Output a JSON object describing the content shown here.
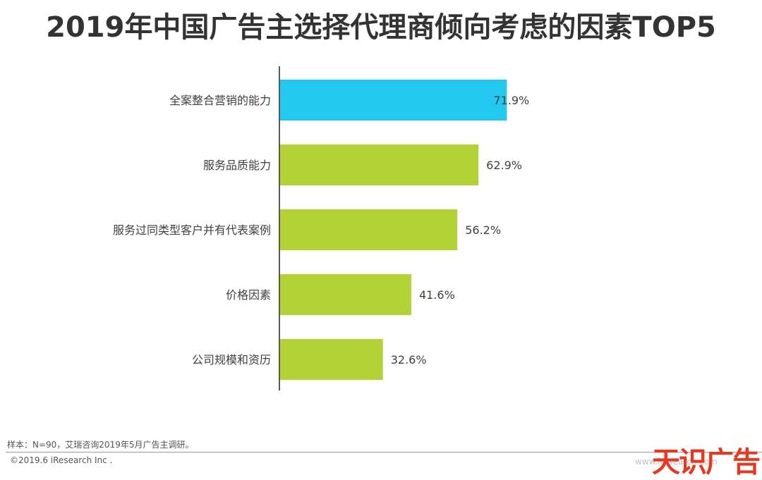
{
  "chart_data": {
    "type": "bar",
    "orientation": "horizontal",
    "title": "2019年中国广告主选择代理商倾向考虑的因素TOP5",
    "categories": [
      "全案整合营销的能力",
      "服务品质能力",
      "服务过同类型客户并有代表案例",
      "价格因素",
      "公司规模和资历"
    ],
    "values": [
      71.9,
      62.9,
      56.2,
      41.6,
      32.6
    ],
    "value_labels": [
      "71.9%",
      "62.9%",
      "56.2%",
      "41.6%",
      "32.6%"
    ],
    "colors": [
      "#22c8f0",
      "#b2d235",
      "#b2d235",
      "#b2d235",
      "#b2d235"
    ],
    "xlabel": "",
    "ylabel": "",
    "grid": false
  },
  "footer": {
    "source": "样本：N=90，艾瑞咨询2019年5月广告主调研。",
    "copyright": "©2019.6 iResearch Inc .",
    "watermark_url": "www.iresearch.com",
    "logo_text": "天识广告"
  }
}
